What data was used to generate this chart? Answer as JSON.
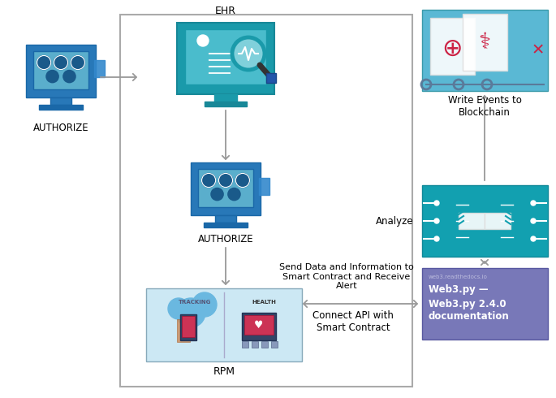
{
  "bg_color": "#ffffff",
  "colors": {
    "blue_body": "#2878b8",
    "blue_screen": "#5aaecc",
    "blue_base": "#1a68a8",
    "teal_dark": "#1a9aaa",
    "teal_screen": "#4abccc",
    "teal_analyze": "#12a0b0",
    "purple_web3": "#7878b8",
    "blockchain_bg": "#5ab8d4",
    "rpm_bg": "#cce8f4",
    "gray_arrow": "#888888",
    "border": "#aaaaaa",
    "tag_blue": "#3388cc"
  },
  "labels": {
    "authorize": "AUTHORIZE",
    "ehr": "EHR",
    "authorize2": "AUTHORIZE",
    "rpm": "RPM",
    "write_events": "Write Events to\nBlockchain",
    "analyze": "Analyze",
    "send_data": "Send Data and Information to\nSmart Contract and Receive\nAlert",
    "connect_api": "Connect API with\nSmart Contract",
    "web3_url": "web3.readthedocs.io",
    "web3_title": "Web3.py —",
    "web3_sub": "Web3.py 2.4.0\ndocumentation"
  }
}
